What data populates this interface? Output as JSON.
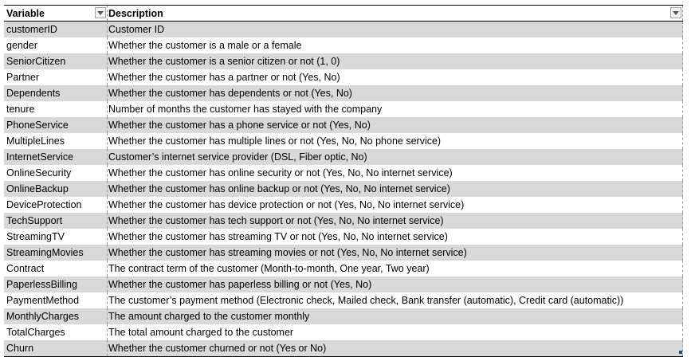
{
  "table": {
    "headers": {
      "variable": "Variable",
      "description": "Description"
    },
    "rows": [
      {
        "variable": "customerID",
        "description": " Customer ID"
      },
      {
        "variable": "gender",
        "description": "Whether the customer is a male or a female"
      },
      {
        "variable": "SeniorCitizen",
        "description": "Whether the customer is a senior citizen or not (1, 0)"
      },
      {
        "variable": "Partner",
        "description": "Whether the customer has a partner or not (Yes, No)"
      },
      {
        "variable": "Dependents",
        "description": "Whether the customer has dependents or not (Yes, No)"
      },
      {
        "variable": "tenure",
        "description": "Number of months the customer has stayed with the company"
      },
      {
        "variable": "PhoneService",
        "description": "Whether the customer has a phone service or not (Yes, No)"
      },
      {
        "variable": "MultipleLines",
        "description": "Whether the customer has multiple lines or not (Yes, No, No phone service)"
      },
      {
        "variable": "InternetService",
        "description": "Customer’s internet service provider (DSL, Fiber optic, No)"
      },
      {
        "variable": "OnlineSecurity",
        "description": "Whether the customer has online security or not (Yes, No, No internet service)"
      },
      {
        "variable": "OnlineBackup",
        "description": "Whether the customer has online backup or not (Yes, No, No internet service)"
      },
      {
        "variable": "DeviceProtection",
        "description": "Whether the customer has device protection or not (Yes, No, No internet service)"
      },
      {
        "variable": "TechSupport",
        "description": "Whether the customer has tech support or not (Yes, No, No internet service)"
      },
      {
        "variable": "StreamingTV",
        "description": "Whether the customer has streaming TV or not (Yes, No, No internet service)"
      },
      {
        "variable": "StreamingMovies",
        "description": "Whether the customer has streaming movies or not (Yes, No, No internet service)"
      },
      {
        "variable": "Contract",
        "description": "The contract term of the customer (Month-to-month, One year, Two year)"
      },
      {
        "variable": "PaperlessBilling",
        "description": "Whether the customer has paperless billing or not (Yes, No)"
      },
      {
        "variable": "PaymentMethod",
        "description": "The customer’s payment method (Electronic check, Mailed check, Bank transfer (automatic), Credit card (automatic))"
      },
      {
        "variable": "MonthlyCharges",
        "description": "The amount charged to the customer monthly"
      },
      {
        "variable": "TotalCharges",
        "description": "The total amount charged to the customer"
      },
      {
        "variable": "Churn",
        "description": "Whether the customer churned or not (Yes or No)"
      }
    ]
  },
  "colors": {
    "band": "#d9d9d9",
    "white": "#ffffff",
    "border": "#000000"
  },
  "icons": {
    "filter": "filter-dropdown-arrow-icon"
  }
}
